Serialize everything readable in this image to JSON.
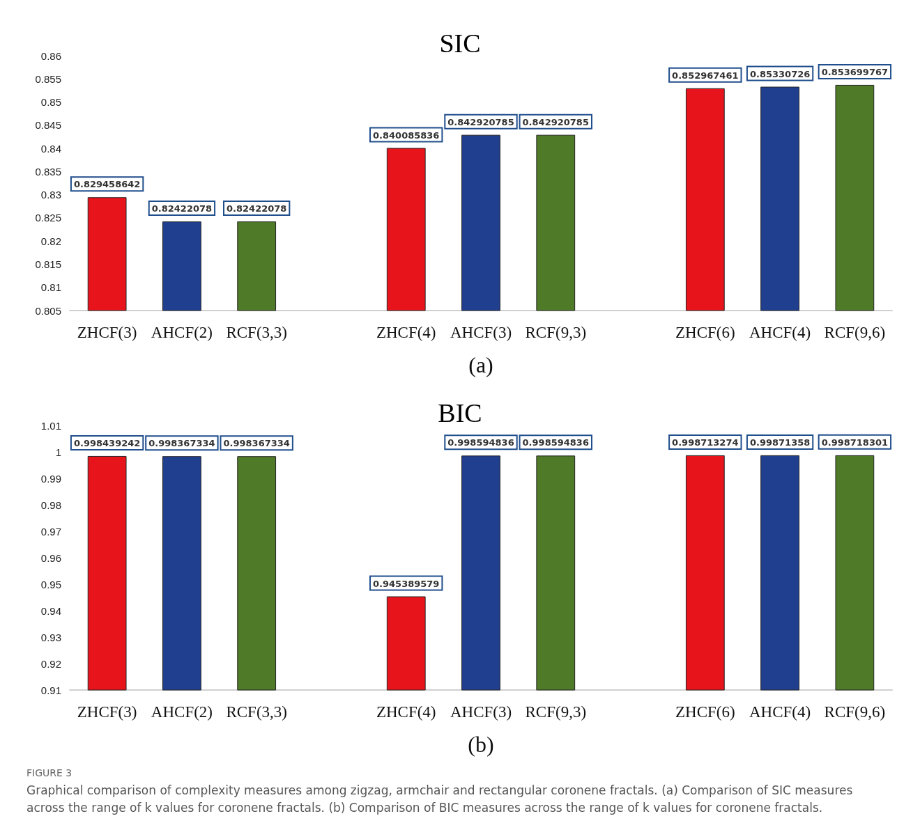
{
  "chart_data": [
    {
      "type": "bar",
      "title": "SIC",
      "xlabel": "(a)",
      "categories": [
        "ZHCF(3)",
        "AHCF(2)",
        "RCF(3,3)",
        null,
        "ZHCF(4)",
        "AHCF(3)",
        "RCF(9,3)",
        null,
        "ZHCF(6)",
        "AHCF(4)",
        "RCF(9,6)"
      ],
      "values": [
        0.829458642,
        0.82422078,
        0.82422078,
        null,
        0.840085836,
        0.842920785,
        0.842920785,
        null,
        0.852967461,
        0.85330726,
        0.853699767
      ],
      "colors": [
        "#e8141c",
        "#203f8f",
        "#4f7a28",
        "#ffffff",
        "#e8141c",
        "#203f8f",
        "#4f7a28",
        "#ffffff",
        "#e8141c",
        "#203f8f",
        "#4f7a28"
      ],
      "ylim": [
        0.805,
        0.86
      ],
      "yticks": [
        0.805,
        0.81,
        0.815,
        0.82,
        0.825,
        0.83,
        0.835,
        0.84,
        0.845,
        0.85,
        0.855,
        0.86
      ],
      "data_labels": true
    },
    {
      "type": "bar",
      "title": "BIC",
      "xlabel": "(b)",
      "categories": [
        "ZHCF(3)",
        "AHCF(2)",
        "RCF(3,3)",
        null,
        "ZHCF(4)",
        "AHCF(3)",
        "RCF(9,3)",
        null,
        "ZHCF(6)",
        "AHCF(4)",
        "RCF(9,6)"
      ],
      "values": [
        0.998439242,
        0.998367334,
        0.998367334,
        null,
        0.945389579,
        0.998594836,
        0.998594836,
        null,
        0.998713274,
        0.99871358,
        0.998718301
      ],
      "colors": [
        "#e8141c",
        "#203f8f",
        "#4f7a28",
        "#ffffff",
        "#e8141c",
        "#203f8f",
        "#4f7a28",
        "#ffffff",
        "#e8141c",
        "#203f8f",
        "#4f7a28"
      ],
      "ylim": [
        0.91,
        1.01
      ],
      "yticks": [
        0.91,
        0.92,
        0.93,
        0.94,
        0.95,
        0.96,
        0.97,
        0.98,
        0.99,
        1,
        1.01
      ],
      "data_labels": true,
      "annotations": [
        "FIGURE 3",
        "Graphical comparison of complexity measures among zigzag, armchair and rectangular coronene fractals. (a) Comparison of SIC measures across the range of k values for coronene fractals. (b) Comparison of BIC measures across the range of k values for coronene fractals."
      ]
    }
  ]
}
